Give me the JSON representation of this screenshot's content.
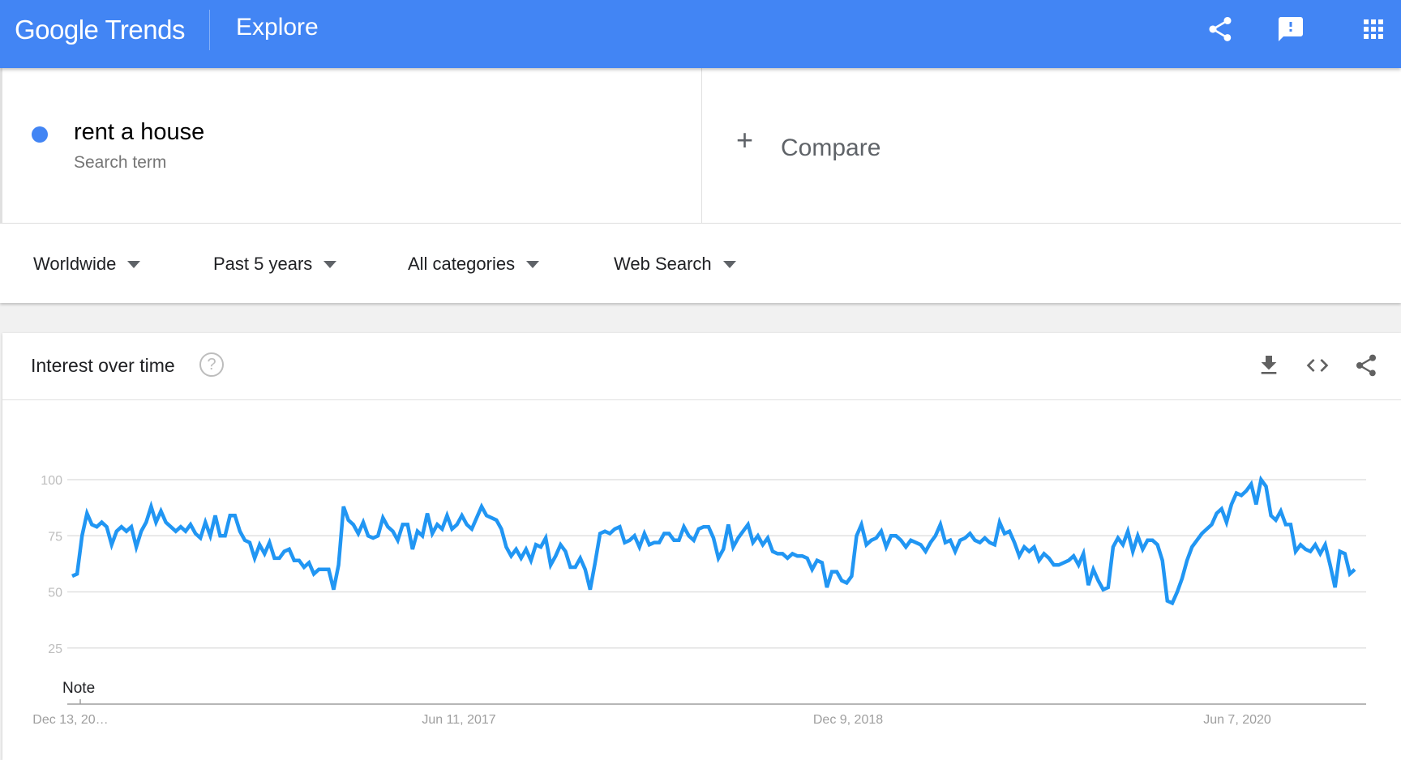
{
  "header": {
    "logo_text": "Google Trends",
    "page_title": "Explore",
    "brand_color": "#4285f4",
    "icons": [
      "share-icon",
      "feedback-icon",
      "apps-grid-icon"
    ]
  },
  "search": {
    "term": "rent a house",
    "term_type": "Search term",
    "term_color": "#4285f4",
    "compare_label": "Compare"
  },
  "filters": [
    {
      "label": "Worldwide"
    },
    {
      "label": "Past 5 years"
    },
    {
      "label": "All categories"
    },
    {
      "label": "Web Search"
    }
  ],
  "card": {
    "title": "Interest over time",
    "help_symbol": "?",
    "icons": [
      "download-icon",
      "embed-icon",
      "share-icon"
    ]
  },
  "chart_data": {
    "type": "line",
    "title": "Interest over time",
    "ylim": [
      0,
      100
    ],
    "yticks": [
      25,
      50,
      75,
      100
    ],
    "xtick_labels": [
      "Dec 13, 20…",
      "Jun 11, 2017",
      "Dec 9, 2018",
      "Jun 7, 2020"
    ],
    "annotation": "Note",
    "grid": true,
    "series_color": "#2196f3",
    "series": [
      {
        "name": "rent a house",
        "values": [
          57,
          58,
          75,
          85,
          80,
          79,
          81,
          79,
          71,
          77,
          79,
          77,
          79,
          70,
          77,
          81,
          88,
          81,
          86,
          81,
          79,
          77,
          79,
          77,
          80,
          76,
          74,
          81,
          75,
          84,
          75,
          75,
          84,
          84,
          77,
          73,
          72,
          65,
          71,
          67,
          72,
          65,
          65,
          68,
          69,
          64,
          64,
          61,
          63,
          58,
          60,
          60,
          60,
          51,
          62,
          88,
          82,
          80,
          76,
          81,
          75,
          74,
          75,
          83,
          79,
          77,
          73,
          80,
          80,
          69,
          77,
          75,
          85,
          76,
          80,
          78,
          84,
          78,
          80,
          84,
          80,
          78,
          83,
          88,
          84,
          83,
          82,
          78,
          70,
          66,
          69,
          65,
          69,
          64,
          71,
          70,
          74,
          62,
          66,
          71,
          68,
          61,
          61,
          65,
          60,
          51,
          63,
          76,
          77,
          76,
          78,
          79,
          72,
          73,
          75,
          70,
          76,
          71,
          72,
          72,
          76,
          76,
          73,
          73,
          79,
          75,
          73,
          78,
          79,
          79,
          74,
          65,
          69,
          80,
          70,
          74,
          77,
          80,
          72,
          75,
          71,
          74,
          68,
          67,
          67,
          65,
          67,
          66,
          66,
          65,
          60,
          64,
          63,
          52,
          59,
          59,
          55,
          54,
          57,
          75,
          80,
          71,
          73,
          74,
          77,
          70,
          75,
          75,
          73,
          70,
          73,
          72,
          71,
          68,
          72,
          75,
          80,
          72,
          73,
          68,
          73,
          74,
          76,
          73,
          72,
          74,
          72,
          71,
          81,
          76,
          77,
          72,
          66,
          70,
          68,
          70,
          64,
          67,
          65,
          62,
          62,
          63,
          64,
          66,
          62,
          67,
          53,
          60,
          55,
          51,
          52,
          70,
          74,
          71,
          77,
          68,
          75,
          69,
          73,
          73,
          71,
          64,
          46,
          45,
          50,
          56,
          64,
          70,
          73,
          76,
          78,
          80,
          85,
          87,
          81,
          89,
          94,
          93,
          95,
          98,
          89,
          100,
          97,
          84,
          82,
          86,
          80,
          80,
          68,
          71,
          69,
          68,
          71,
          67,
          71,
          62,
          52,
          68,
          67,
          58,
          60
        ]
      }
    ]
  }
}
